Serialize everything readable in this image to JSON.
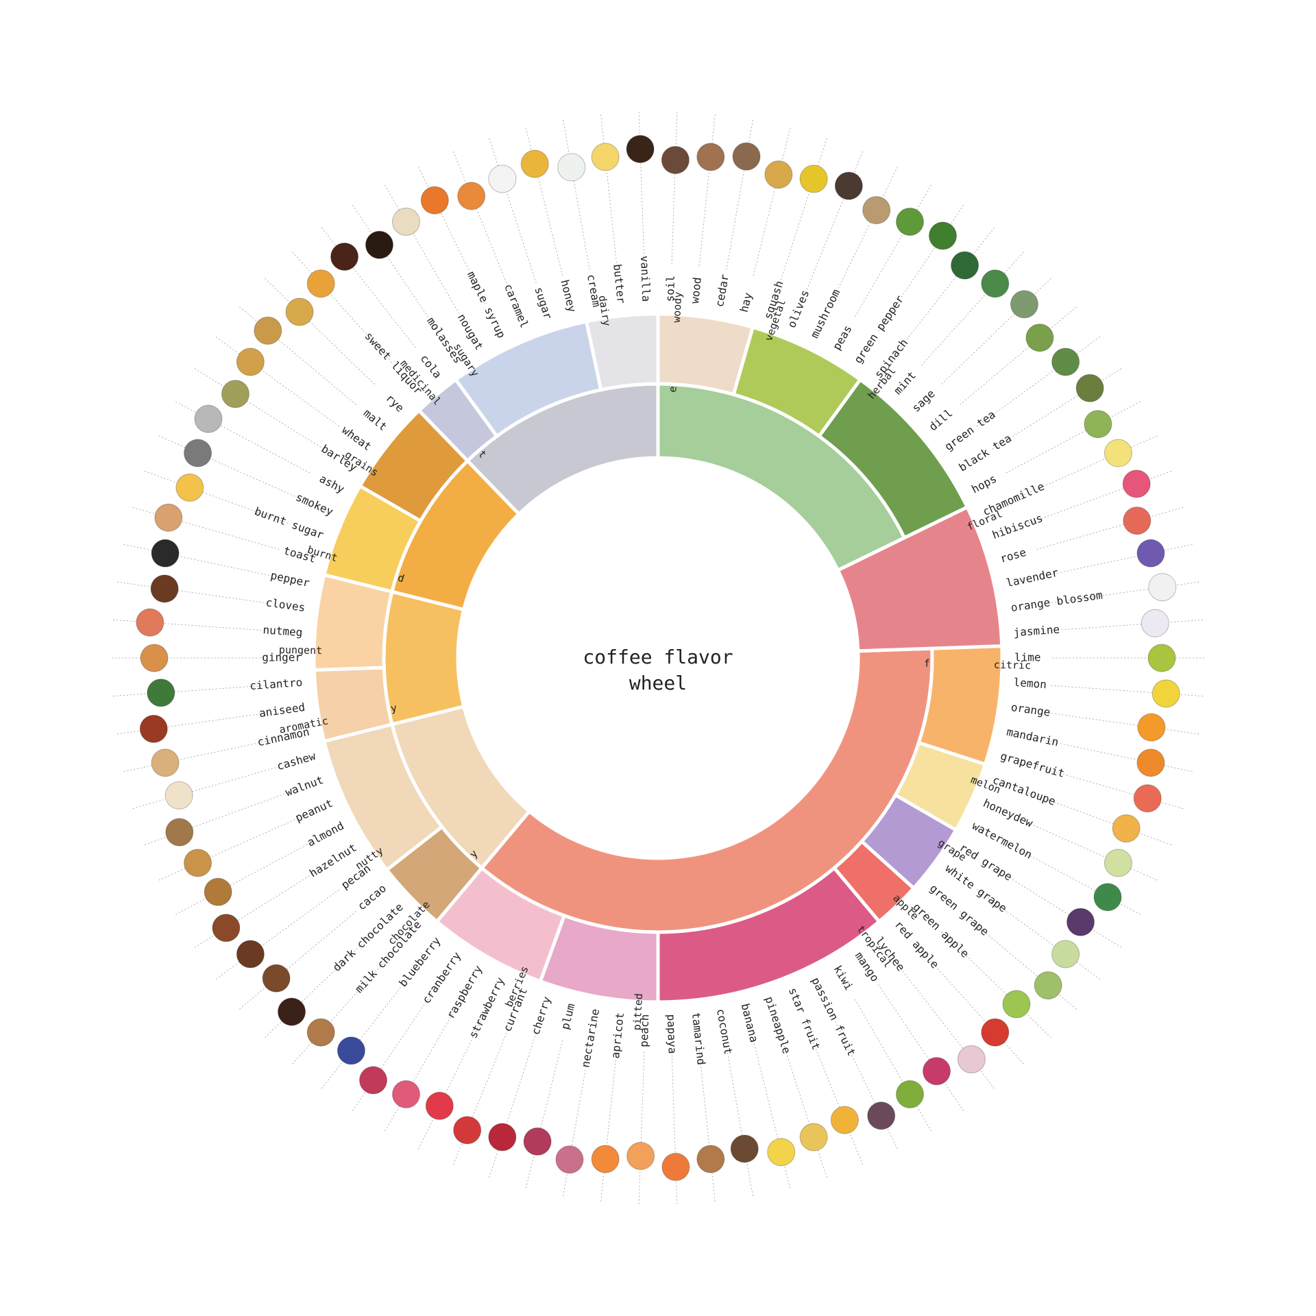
{
  "title": {
    "line1": "coffee flavor",
    "line2": "wheel"
  },
  "wheel": {
    "start_angle_deg": 0,
    "inner": [
      {
        "label": "earthy",
        "color": "#a5ce9a",
        "children": [
          {
            "label": "woody",
            "color": "#efdcc8",
            "flavors": [
              {
                "name": "soil",
                "icon_color": "#6b4a3a"
              },
              {
                "name": "wood",
                "icon_color": "#a07250"
              },
              {
                "name": "cedar",
                "icon_color": "#8a6a4e"
              },
              {
                "name": "hay",
                "icon_color": "#d7a94b"
              }
            ]
          },
          {
            "label": "vegetal",
            "color": "#afca58",
            "flavors": [
              {
                "name": "squash",
                "icon_color": "#e6c52a"
              },
              {
                "name": "olives",
                "icon_color": "#4b3a32"
              },
              {
                "name": "mushroom",
                "icon_color": "#b99b72"
              },
              {
                "name": "peas",
                "icon_color": "#5f9a3a"
              },
              {
                "name": "green pepper",
                "icon_color": "#3f7f2f"
              }
            ]
          },
          {
            "label": "herbal",
            "color": "#6e9e4e",
            "flavors": [
              {
                "name": "spinach",
                "icon_color": "#2f6a36"
              },
              {
                "name": "mint",
                "icon_color": "#4c8a4a"
              },
              {
                "name": "sage",
                "icon_color": "#7f9a70"
              },
              {
                "name": "dill",
                "icon_color": "#7aa04c"
              },
              {
                "name": "green tea",
                "icon_color": "#5f8d46"
              },
              {
                "name": "black tea",
                "icon_color": "#6a7f3e"
              },
              {
                "name": "hops",
                "icon_color": "#8fb457"
              }
            ]
          }
        ]
      },
      {
        "label": "floral",
        "color": "#e6848c",
        "children": [
          {
            "label": "",
            "color": "#e6848c",
            "flavors": [
              {
                "name": "chamomille",
                "icon_color": "#f3e27a"
              },
              {
                "name": "hibiscus",
                "icon_color": "#e6557a"
              },
              {
                "name": "rose",
                "icon_color": "#e56a5a"
              },
              {
                "name": "lavender",
                "icon_color": "#6f5ab0"
              },
              {
                "name": "orange blossom",
                "icon_color": "#f1f1f1"
              },
              {
                "name": "jasmine",
                "icon_color": "#ece9f2"
              }
            ]
          }
        ]
      },
      {
        "label": "fruity",
        "color": "#f0937e",
        "children": [
          {
            "label": "citric",
            "color": "#f8b36a",
            "flavors": [
              {
                "name": "lime",
                "icon_color": "#a9c43f"
              },
              {
                "name": "lemon",
                "icon_color": "#f1d43c"
              },
              {
                "name": "orange",
                "icon_color": "#f39a2a"
              },
              {
                "name": "mandarin",
                "icon_color": "#ef8a2a"
              },
              {
                "name": "grapefruit",
                "icon_color": "#ea6b55"
              }
            ]
          },
          {
            "label": "melon",
            "color": "#f6e19f",
            "flavors": [
              {
                "name": "cantaloupe",
                "icon_color": "#f1b24a"
              },
              {
                "name": "honeydew",
                "icon_color": "#cfe0a0"
              },
              {
                "name": "watermelon",
                "icon_color": "#3f8a4a"
              }
            ]
          },
          {
            "label": "grape",
            "color": "#b39ad2",
            "flavors": [
              {
                "name": "red grape",
                "icon_color": "#5a3a6a"
              },
              {
                "name": "white grape",
                "icon_color": "#c9dca0"
              },
              {
                "name": "green grape",
                "icon_color": "#9fbf6a"
              }
            ]
          },
          {
            "label": "apple",
            "color": "#ee7068",
            "flavors": [
              {
                "name": "green apple",
                "icon_color": "#9cc552"
              },
              {
                "name": "red apple",
                "icon_color": "#d63b2f"
              }
            ]
          },
          {
            "label": "tropical",
            "color": "#dc5b86",
            "flavors": [
              {
                "name": "lychee",
                "icon_color": "#e8c8d2"
              },
              {
                "name": "mango",
                "icon_color": "#c73b6a"
              },
              {
                "name": "kiwi",
                "icon_color": "#7fae3a"
              },
              {
                "name": "passion fruit",
                "icon_color": "#6a4a5a"
              },
              {
                "name": "star fruit",
                "icon_color": "#f1b23a"
              },
              {
                "name": "pineapple",
                "icon_color": "#e9c45a"
              },
              {
                "name": "banana",
                "icon_color": "#f2d34a"
              },
              {
                "name": "coconut",
                "icon_color": "#6a4a32"
              },
              {
                "name": "tamarind",
                "icon_color": "#b07a4a"
              },
              {
                "name": "papaya",
                "icon_color": "#ee7a3a"
              }
            ]
          },
          {
            "label": "pitted",
            "color": "#e8a8c8",
            "flavors": [
              {
                "name": "peach",
                "icon_color": "#f2a15a"
              },
              {
                "name": "apricot",
                "icon_color": "#f28a3a"
              },
              {
                "name": "nectarine",
                "icon_color": "#c9718a"
              },
              {
                "name": "plum",
                "icon_color": "#b23a5a"
              },
              {
                "name": "cherry",
                "icon_color": "#b8283a"
              }
            ]
          },
          {
            "label": "berries",
            "color": "#f4bfcc",
            "flavors": [
              {
                "name": "currant",
                "icon_color": "#d23a3a"
              },
              {
                "name": "strawberry",
                "icon_color": "#e23a4a"
              },
              {
                "name": "raspberry",
                "icon_color": "#e05a7a"
              },
              {
                "name": "cranberry",
                "icon_color": "#c23a5a"
              },
              {
                "name": "blueberry",
                "icon_color": "#3a4a9a"
              }
            ]
          }
        ]
      },
      {
        "label": "nutty",
        "color": "#f0d8b8",
        "children": [
          {
            "label": "chocolate",
            "color": "#d3a778",
            "flavors": [
              {
                "name": "milk chocolate",
                "icon_color": "#b07a4a"
              },
              {
                "name": "dark chocolate",
                "icon_color": "#3a2218"
              },
              {
                "name": "cacao",
                "icon_color": "#7a4a2a"
              }
            ]
          },
          {
            "label": "nutty",
            "color": "#f0d8b8",
            "flavors": [
              {
                "name": "pecan",
                "icon_color": "#6a3a22"
              },
              {
                "name": "hazelnut",
                "icon_color": "#8a4a2a"
              },
              {
                "name": "almond",
                "icon_color": "#b07a3a"
              },
              {
                "name": "peanut",
                "icon_color": "#c9944a"
              },
              {
                "name": "walnut",
                "icon_color": "#a0784a"
              },
              {
                "name": "cashew",
                "icon_color": "#efe2c8"
              }
            ]
          }
        ]
      },
      {
        "label": "spicy",
        "color": "#f6c060",
        "children": [
          {
            "label": "aromatic",
            "color": "#f6d0a8",
            "flavors": [
              {
                "name": "cinnamon",
                "icon_color": "#d9b07a"
              },
              {
                "name": "aniseed",
                "icon_color": "#9a3a22"
              },
              {
                "name": "cilantro",
                "icon_color": "#3f7a3a"
              }
            ]
          },
          {
            "label": "pungent",
            "color": "#fad2a4",
            "flavors": [
              {
                "name": "ginger",
                "icon_color": "#d9904a"
              },
              {
                "name": "nutmeg",
                "icon_color": "#e07a5a"
              },
              {
                "name": "cloves",
                "icon_color": "#6a3a22"
              },
              {
                "name": "pepper",
                "icon_color": "#2a2a2a"
              }
            ]
          }
        ]
      },
      {
        "label": "roasted",
        "color": "#f2ae45",
        "children": [
          {
            "label": "burnt",
            "color": "#f7cd5c",
            "flavors": [
              {
                "name": "toast",
                "icon_color": "#d9a070"
              },
              {
                "name": "burnt sugar",
                "icon_color": "#f2c24a"
              },
              {
                "name": "smokey",
                "icon_color": "#7a7a7a"
              },
              {
                "name": "ashy",
                "icon_color": "#b8b8b8"
              }
            ]
          },
          {
            "label": "grains",
            "color": "#df9a3c",
            "flavors": [
              {
                "name": "barley",
                "icon_color": "#a0a05a"
              },
              {
                "name": "wheat",
                "icon_color": "#d2a04a"
              },
              {
                "name": "malt",
                "icon_color": "#c99a4a"
              },
              {
                "name": "rye",
                "icon_color": "#d7a94b"
              }
            ]
          }
        ]
      },
      {
        "label": "sweet",
        "color": "#c8c8d2",
        "children": [
          {
            "label": "medicinal",
            "color": "#c5c8dc",
            "flavors": [
              {
                "name": "sweet liquor",
                "icon_color": "#e9a23a"
              },
              {
                "name": "cola",
                "icon_color": "#4a2418"
              }
            ]
          },
          {
            "label": "sugary",
            "color": "#c9d4ea",
            "flavors": [
              {
                "name": "molasses",
                "icon_color": "#2a1a12"
              },
              {
                "name": "nougat",
                "icon_color": "#e9dcc0"
              },
              {
                "name": "maple syrup",
                "icon_color": "#e9782a"
              },
              {
                "name": "caramel",
                "icon_color": "#e98a3a"
              },
              {
                "name": "sugar",
                "icon_color": "#f4f4f4"
              },
              {
                "name": "honey",
                "icon_color": "#e9b53a"
              }
            ]
          },
          {
            "label": "dairy",
            "color": "#e3e3e8",
            "flavors": [
              {
                "name": "cream",
                "icon_color": "#eef2ee"
              },
              {
                "name": "butter",
                "icon_color": "#f3d56a"
              },
              {
                "name": "vanilla",
                "icon_color": "#3a2418"
              }
            ]
          }
        ]
      }
    ]
  }
}
